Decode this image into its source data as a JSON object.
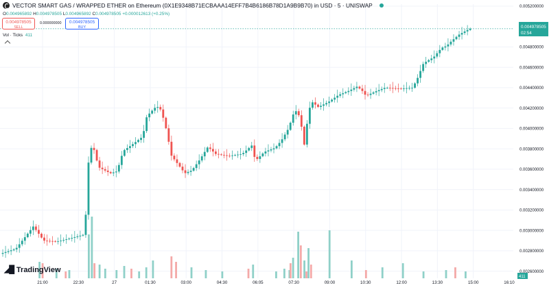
{
  "header": {
    "title": "VECTOR SMART GAS / WRAPPED ETHER on Ethereum (0X1E9348B71ECBAAA14EFF7B4B6186B78D1A9B9B70) in USD · 5 · UNISWAP",
    "ohlc": {
      "o_label": "O",
      "o": "0.004965892",
      "h_label": "H",
      "h": "0.004978505",
      "l_label": "L",
      "l": "0.004965892",
      "c_label": "C",
      "c": "0.004978505",
      "change": "+0.000012613 (+0.25%)"
    }
  },
  "trade": {
    "sell_price": "0.004978505",
    "sell_label": "SELL",
    "spread": "0.000000000",
    "buy_price": "0.004978505",
    "buy_label": "BUY"
  },
  "volume_legend": {
    "label": "Vol · Ticks",
    "value": "411"
  },
  "last_price_label": {
    "price": "0.004978505",
    "countdown": "02:54"
  },
  "volume_label": "411",
  "branding": {
    "logo_text": "TradingView"
  },
  "colors": {
    "up": "#26a69a",
    "down": "#ef5350",
    "up_volume": "#8fd0c8",
    "down_volume": "#f4a9a8",
    "last_price": "#26a69a"
  },
  "chart_data": {
    "type": "candlestick",
    "yticks": [
      "0.005200000",
      "0.004800000",
      "0.004600000",
      "0.004400000",
      "0.004200000",
      "0.004000000",
      "0.003800000",
      "0.003600000",
      "0.003400000",
      "0.003200000",
      "0.003000000",
      "0.002800000",
      "0.002600000"
    ],
    "xticks": [
      "21:00",
      "22:30",
      "27",
      "01:30",
      "03:00",
      "04:30",
      "06:05",
      "07:30",
      "09:00",
      "10:30",
      "12:00",
      "13:30",
      "15:00",
      "16:10"
    ],
    "ylim": [
      0.00253,
      0.00522
    ],
    "xlim": [
      0,
      100
    ],
    "grid": true,
    "last_price": 0.004978505,
    "series": [
      {
        "name": "Price",
        "values": [
          [
            0.0,
            0.00277
          ],
          [
            3.1,
            0.00282
          ],
          [
            6.5,
            0.00304
          ],
          [
            8.5,
            0.0029
          ],
          [
            11,
            0.00289
          ],
          [
            13.5,
            0.00292
          ],
          [
            16.5,
            0.00296
          ],
          [
            17.3,
            0.00372
          ],
          [
            18.0,
            0.00385
          ],
          [
            19.2,
            0.00362
          ],
          [
            21.5,
            0.00356
          ],
          [
            22.8,
            0.00358
          ],
          [
            24,
            0.00378
          ],
          [
            25.7,
            0.00384
          ],
          [
            27.8,
            0.00392
          ],
          [
            28.6,
            0.00412
          ],
          [
            30.5,
            0.00422
          ],
          [
            31.4,
            0.00418
          ],
          [
            32.6,
            0.00395
          ],
          [
            33.3,
            0.00374
          ],
          [
            34.8,
            0.00364
          ],
          [
            36,
            0.00356
          ],
          [
            37.4,
            0.00359
          ],
          [
            39,
            0.0037
          ],
          [
            40.5,
            0.00382
          ],
          [
            42,
            0.00375
          ],
          [
            44.5,
            0.00373
          ],
          [
            47.2,
            0.00375
          ],
          [
            49.2,
            0.00384
          ],
          [
            49.7,
            0.00368
          ],
          [
            51.5,
            0.00377
          ],
          [
            53.6,
            0.00381
          ],
          [
            54.8,
            0.00388
          ],
          [
            56.2,
            0.004
          ],
          [
            57.2,
            0.00415
          ],
          [
            57.9,
            0.00418
          ],
          [
            58.6,
            0.00406
          ],
          [
            59.4,
            0.0038
          ],
          [
            60,
            0.00416
          ],
          [
            60.8,
            0.00426
          ],
          [
            62,
            0.00421
          ],
          [
            64,
            0.00426
          ],
          [
            66,
            0.00433
          ],
          [
            68,
            0.00437
          ],
          [
            69.5,
            0.00441
          ],
          [
            70.4,
            0.00438
          ],
          [
            71.3,
            0.00432
          ],
          [
            73,
            0.00436
          ],
          [
            75,
            0.0044
          ],
          [
            78,
            0.00439
          ],
          [
            80.4,
            0.0044
          ],
          [
            81.4,
            0.0045
          ],
          [
            82.5,
            0.00464
          ],
          [
            84.5,
            0.0047
          ],
          [
            86,
            0.00479
          ],
          [
            87,
            0.00481
          ],
          [
            88,
            0.00486
          ],
          [
            89.4,
            0.00492
          ],
          [
            90.8,
            0.00496
          ],
          [
            91.6,
            0.0049785
          ]
        ]
      }
    ],
    "volumes": [
      [
        7.7,
        "up"
      ],
      [
        8.3,
        "down"
      ],
      [
        11,
        "up"
      ],
      [
        12.8,
        "down"
      ],
      [
        13.5,
        "up"
      ],
      [
        17.3,
        "up"
      ],
      [
        17.9,
        "up"
      ],
      [
        18.4,
        "down"
      ],
      [
        19.4,
        "up"
      ],
      [
        20.5,
        "up"
      ],
      [
        22.7,
        "up"
      ],
      [
        24.2,
        "up"
      ],
      [
        25.6,
        "down"
      ],
      [
        27.1,
        "up"
      ],
      [
        28.5,
        "up"
      ],
      [
        29.8,
        "up"
      ],
      [
        33.4,
        "down"
      ],
      [
        34.3,
        "down"
      ],
      [
        37.3,
        "up"
      ],
      [
        40.1,
        "up"
      ],
      [
        43.3,
        "up"
      ],
      [
        48.4,
        "down"
      ],
      [
        49.3,
        "up"
      ],
      [
        53.8,
        "up"
      ],
      [
        55.4,
        "up"
      ],
      [
        56.4,
        "up"
      ],
      [
        56.6,
        "down"
      ],
      [
        57.1,
        "up"
      ],
      [
        58.1,
        "up"
      ],
      [
        58.6,
        "down"
      ],
      [
        59.3,
        "up"
      ],
      [
        59.7,
        "down"
      ],
      [
        60.1,
        "up"
      ],
      [
        60.6,
        "down"
      ],
      [
        64.2,
        "up"
      ],
      [
        68.5,
        "up"
      ],
      [
        71.3,
        "down"
      ],
      [
        74.5,
        "up"
      ],
      [
        78.5,
        "up"
      ],
      [
        82.5,
        "up"
      ],
      [
        86.9,
        "up"
      ],
      [
        88.7,
        "down"
      ],
      [
        90.7,
        "up"
      ]
    ]
  }
}
